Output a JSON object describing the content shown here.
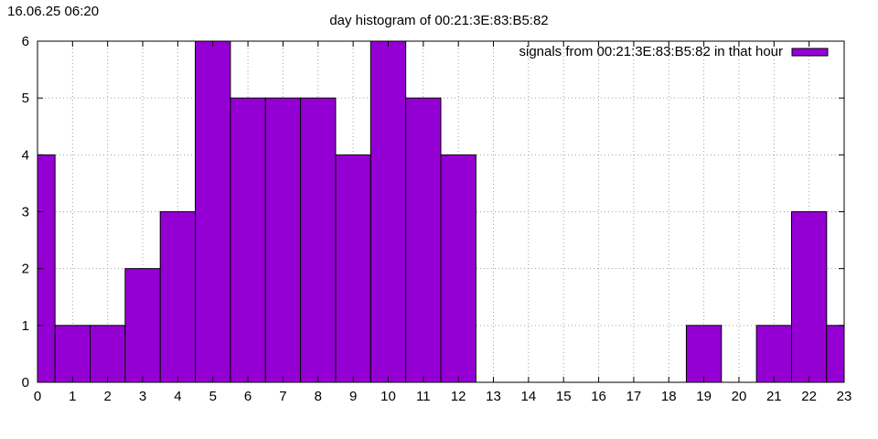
{
  "timestamp": "16.06.25 06:20",
  "chart_data": {
    "type": "bar",
    "title": "day histogram of 00:21:3E:83:B5:82",
    "xlabel": "",
    "ylabel": "",
    "categories": [
      "0",
      "1",
      "2",
      "3",
      "4",
      "5",
      "6",
      "7",
      "8",
      "9",
      "10",
      "11",
      "12",
      "13",
      "14",
      "15",
      "16",
      "17",
      "18",
      "19",
      "20",
      "21",
      "22",
      "23"
    ],
    "series": [
      {
        "name": "signals from 00:21:3E:83:B5:82 in that hour",
        "values": [
          4,
          1,
          1,
          2,
          3,
          6,
          5,
          5,
          5,
          4,
          6,
          5,
          4,
          0,
          0,
          0,
          0,
          0,
          0,
          1,
          0,
          1,
          3,
          1
        ]
      }
    ],
    "xlim": [
      0,
      23
    ],
    "ylim": [
      0,
      6
    ],
    "yticks": [
      "0",
      "1",
      "2",
      "3",
      "4",
      "5",
      "6"
    ],
    "grid": true,
    "legend_position": "top-right",
    "colors": {
      "bar": "#9400d3",
      "bar_edge": "#000000",
      "grid": "#a0a0a0"
    }
  }
}
